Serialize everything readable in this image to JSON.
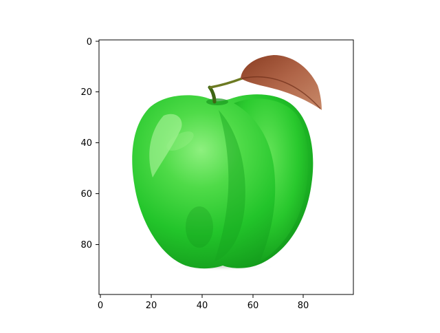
{
  "figure": {
    "type": "image",
    "subject_icon": "green-apple-image",
    "x_ticks": [
      "0",
      "20",
      "40",
      "60",
      "80"
    ],
    "y_ticks": [
      "0",
      "20",
      "40",
      "60",
      "80"
    ],
    "xlim": [
      -0.5,
      99.5
    ],
    "ylim": [
      99.5,
      -0.5
    ],
    "colors": {
      "apple_light": "#5fe05a",
      "apple_main": "#22c42a",
      "apple_dark": "#119419",
      "leaf_main": "#a0553a",
      "leaf_dark": "#7a3520",
      "stem": "#4a6e18",
      "axis": "#000000",
      "background": "#ffffff"
    }
  }
}
